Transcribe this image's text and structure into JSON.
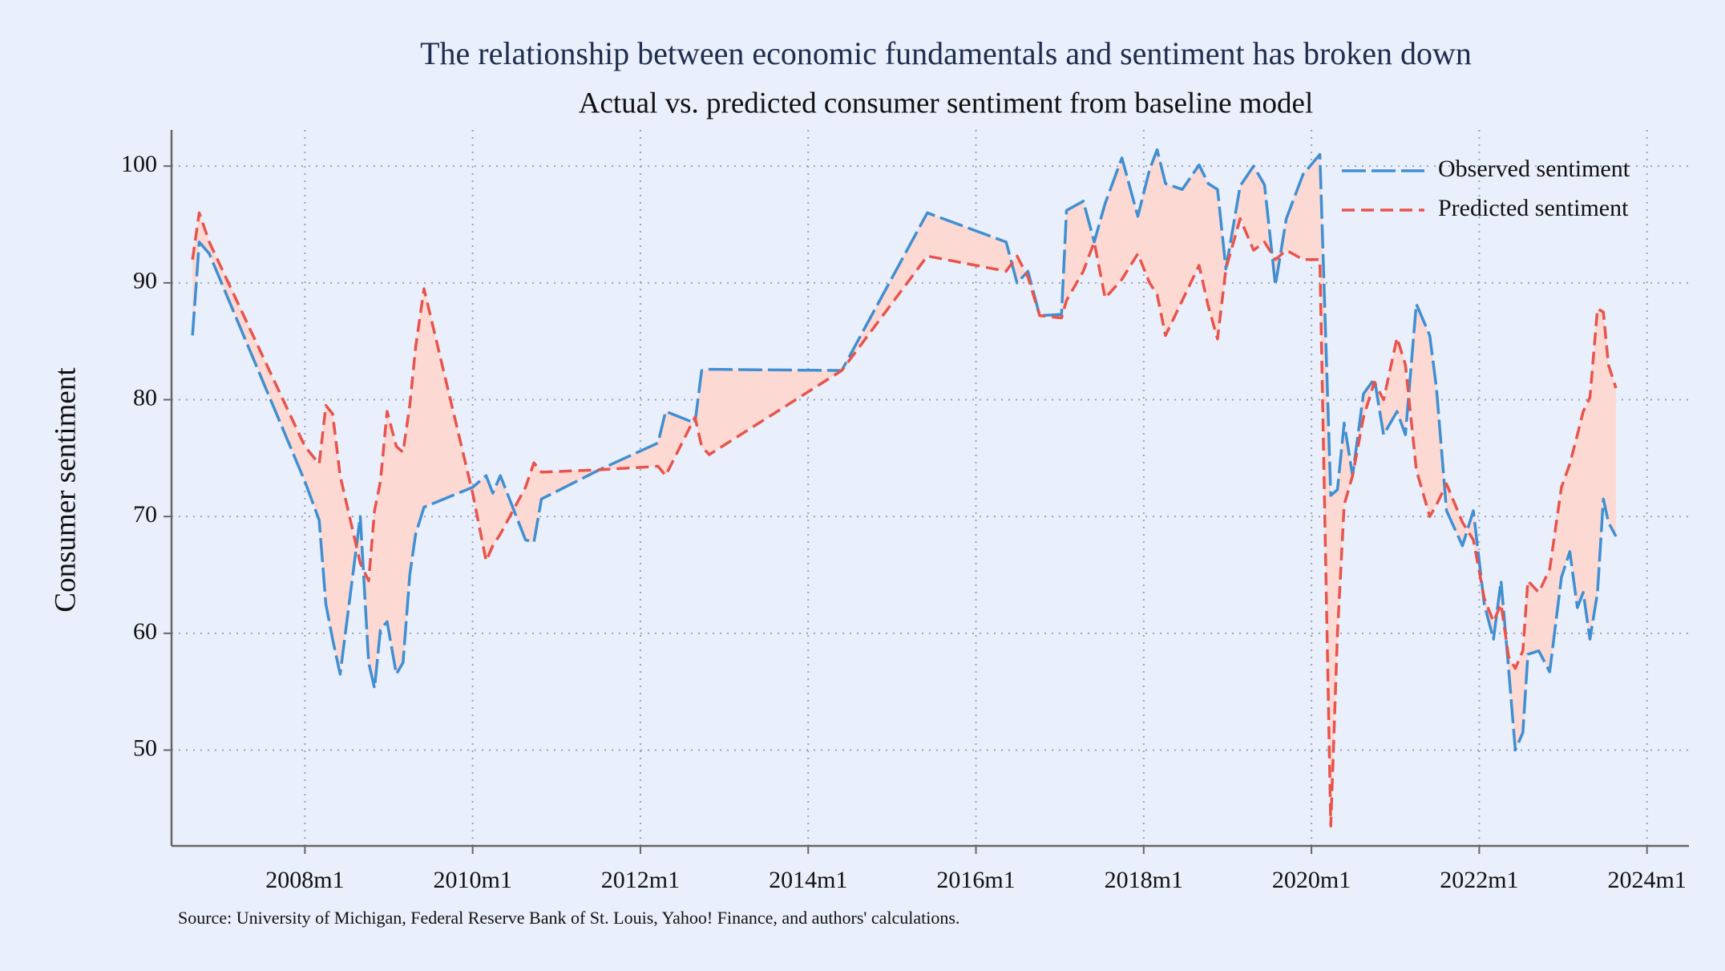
{
  "chart_data": {
    "type": "line",
    "title": "The relationship between economic fundamentals and sentiment has broken down",
    "subtitle": "Actual vs. predicted consumer sentiment from baseline model",
    "y_label": "Consumer sentiment",
    "source": "Source: University of Michigan, Federal Reserve Bank of St. Louis, Yahoo! Finance, and authors' calculations.",
    "x": [
      2006.66,
      2006.74,
      2006.86,
      2008.0,
      2008.17,
      2008.25,
      2008.33,
      2008.42,
      2008.66,
      2008.76,
      2008.83,
      2008.9,
      2008.98,
      2009.09,
      2009.17,
      2009.25,
      2009.32,
      2009.42,
      2010.0,
      2010.16,
      2010.24,
      2010.33,
      2010.63,
      2010.73,
      2010.82,
      2011.51,
      2012.21,
      2012.3,
      2012.65,
      2012.73,
      2012.82,
      2014.4,
      2015.42,
      2016.36,
      2016.49,
      2016.62,
      2016.76,
      2017.02,
      2017.08,
      2017.28,
      2017.41,
      2017.54,
      2017.74,
      2017.93,
      2018.07,
      2018.16,
      2018.26,
      2018.46,
      2018.66,
      2018.77,
      2018.88,
      2018.98,
      2019.15,
      2019.31,
      2019.44,
      2019.57,
      2019.7,
      2019.9,
      2020.1,
      2020.23,
      2020.31,
      2020.39,
      2020.49,
      2020.62,
      2020.75,
      2020.86,
      2021.02,
      2021.12,
      2021.25,
      2021.41,
      2021.49,
      2021.61,
      2021.8,
      2021.93,
      2022.06,
      2022.17,
      2022.26,
      2022.35,
      2022.43,
      2022.52,
      2022.58,
      2022.71,
      2022.84,
      2022.98,
      2023.08,
      2023.17,
      2023.24,
      2023.32,
      2023.41,
      2023.48,
      2023.54,
      2023.63
    ],
    "series": [
      {
        "name": "Observed sentiment",
        "color": "#3f8fd2",
        "dash": "long-dash",
        "values": [
          85.5,
          93.5,
          92.5,
          73,
          69.7,
          62.5,
          59.5,
          56.5,
          70,
          57.5,
          55.3,
          60.3,
          61,
          56.5,
          57.5,
          65,
          68.5,
          70.8,
          72.5,
          73.5,
          72,
          73.5,
          68,
          67.8,
          71.5,
          74,
          76.3,
          79,
          78,
          82.5,
          82.6,
          82.5,
          96,
          93.5,
          90,
          91,
          87.2,
          87.3,
          96.2,
          97,
          93.5,
          96.8,
          100.7,
          95.7,
          99.7,
          101.4,
          98.5,
          98,
          100.1,
          98.5,
          98,
          91.2,
          98.3,
          100,
          98.4,
          89.8,
          95.5,
          99.3,
          101,
          71.8,
          72.3,
          78,
          73.5,
          80.5,
          81.8,
          77,
          79,
          77,
          88.2,
          85.5,
          81,
          70.5,
          67.5,
          70.5,
          62.5,
          59.5,
          64.5,
          57,
          50,
          51.5,
          58.2,
          58.5,
          56.7,
          64.8,
          67,
          62.2,
          63.5,
          59.5,
          63.5,
          71.5,
          69.5,
          68.3
        ]
      },
      {
        "name": "Predicted sentiment",
        "color": "#e8544b",
        "dash": "dash",
        "values": [
          92,
          96,
          93.5,
          76,
          74.5,
          79.5,
          78.8,
          73.5,
          66,
          64.5,
          70.5,
          73,
          79,
          76,
          75.5,
          79.5,
          84.5,
          89.5,
          72,
          66.2,
          67.5,
          68.5,
          72.5,
          74.6,
          73.8,
          74,
          74.3,
          73.5,
          78.5,
          76,
          75.3,
          82.5,
          92.3,
          91,
          92.3,
          90.5,
          87.2,
          87,
          88.5,
          91,
          93.5,
          88.7,
          90.3,
          92.5,
          90,
          89,
          85.5,
          88.5,
          91.5,
          88,
          85.2,
          91.2,
          95.5,
          92.8,
          93.5,
          92,
          92.8,
          92,
          92,
          43.5,
          60,
          71,
          73.5,
          78.5,
          81.5,
          80,
          85.3,
          83,
          74,
          70,
          71,
          72.8,
          69.5,
          68,
          63,
          61,
          62.5,
          58,
          57,
          58.5,
          64.5,
          63.5,
          65.5,
          72.5,
          74.5,
          77,
          79,
          80.2,
          87.8,
          87.5,
          83,
          81
        ]
      }
    ],
    "fill_color": "#fdd9d4",
    "xlim": [
      2006.41,
      2024.5
    ],
    "xticks": [
      {
        "value": 2008,
        "label": "2008m1"
      },
      {
        "value": 2010,
        "label": "2010m1"
      },
      {
        "value": 2012,
        "label": "2012m1"
      },
      {
        "value": 2014,
        "label": "2014m1"
      },
      {
        "value": 2016,
        "label": "2016m1"
      },
      {
        "value": 2018,
        "label": "2018m1"
      },
      {
        "value": 2020,
        "label": "2020m1"
      },
      {
        "value": 2022,
        "label": "2022m1"
      },
      {
        "value": 2024,
        "label": "2024m1"
      }
    ],
    "ylim": [
      41.8,
      103.1
    ],
    "yticks": [
      50,
      60,
      70,
      80,
      90,
      100
    ],
    "grid": true,
    "legend": "upper right"
  }
}
